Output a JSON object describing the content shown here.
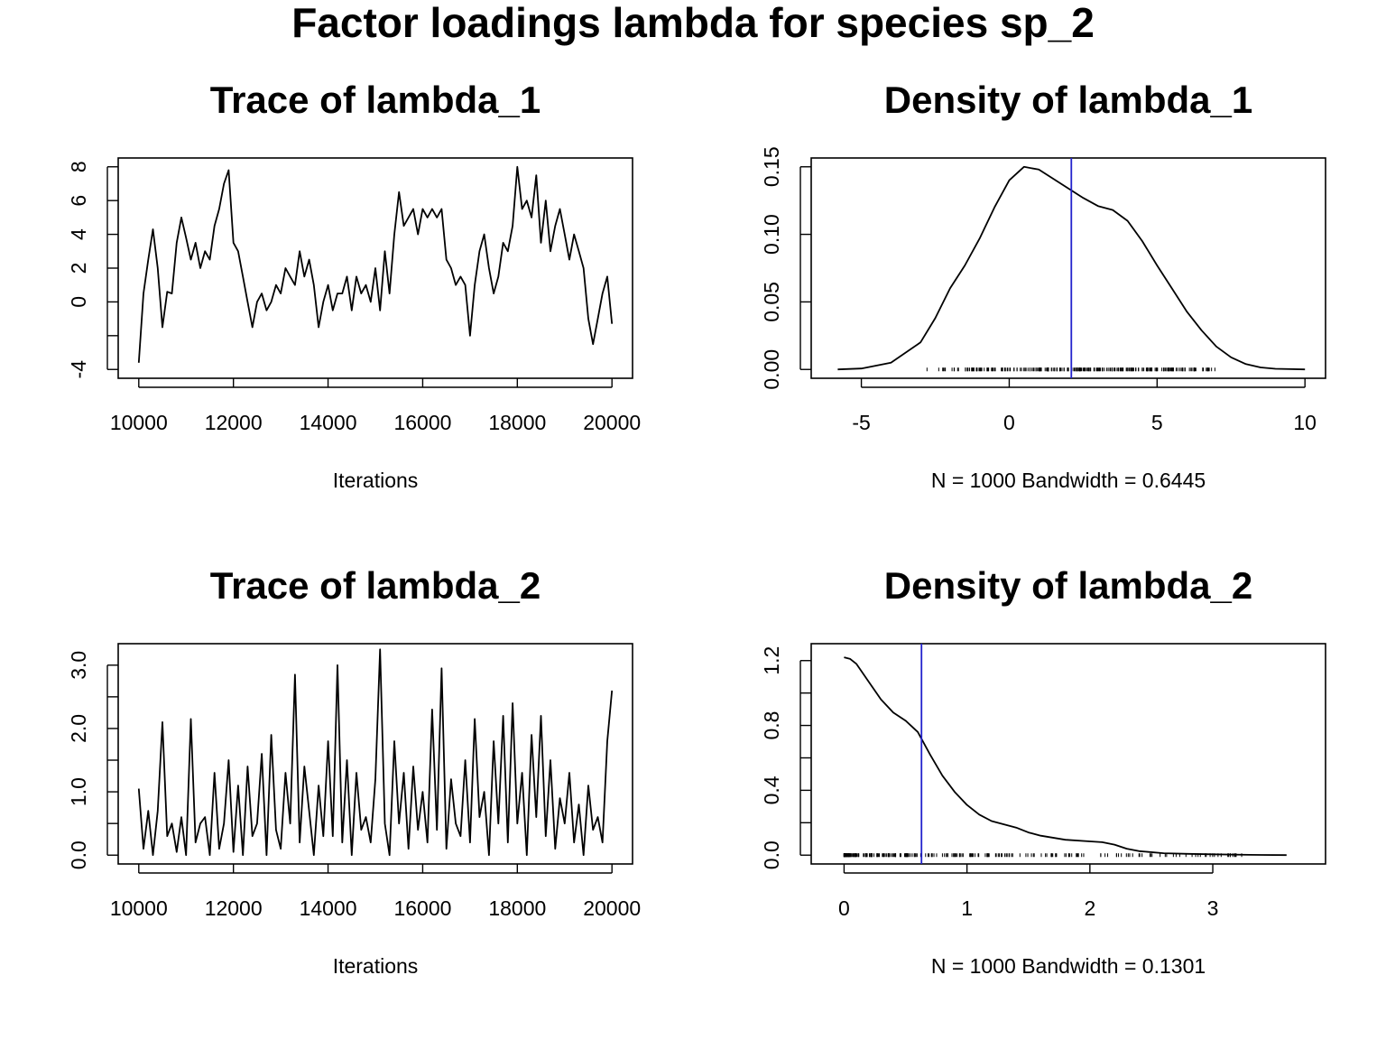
{
  "title": "Factor loadings lambda for species  sp_2",
  "colors": {
    "line": "#000000",
    "mean_line": "#2222cc",
    "background": "#ffffff"
  },
  "chart_data": [
    {
      "type": "line",
      "title": "Trace of lambda_1",
      "xlabel": "Iterations",
      "ylabel": "",
      "xlim": [
        10000,
        20000
      ],
      "ylim": [
        -4,
        8
      ],
      "x_ticks": [
        10000,
        12000,
        14000,
        16000,
        18000,
        20000
      ],
      "y_ticks": [
        -4,
        -2,
        0,
        2,
        4,
        6,
        8
      ],
      "y_tick_labels": [
        "-4",
        "",
        "0",
        "2",
        "4",
        "6",
        "8"
      ],
      "series": [
        {
          "x": [
            10000,
            10100,
            10200,
            10300,
            10400,
            10500,
            10600,
            10700,
            10800,
            10900,
            11000,
            11100,
            11200,
            11300,
            11400,
            11500,
            11600,
            11700,
            11800,
            11900,
            12000,
            12100,
            12200,
            12300,
            12400,
            12500,
            12600,
            12700,
            12800,
            12900,
            13000,
            13100,
            13200,
            13300,
            13400,
            13500,
            13600,
            13700,
            13800,
            13900,
            14000,
            14100,
            14200,
            14300,
            14400,
            14500,
            14600,
            14700,
            14800,
            14900,
            15000,
            15100,
            15200,
            15300,
            15400,
            15500,
            15600,
            15700,
            15800,
            15900,
            16000,
            16100,
            16200,
            16300,
            16400,
            16500,
            16600,
            16700,
            16800,
            16900,
            17000,
            17100,
            17200,
            17300,
            17400,
            17500,
            17600,
            17700,
            17800,
            17900,
            18000,
            18100,
            18200,
            18300,
            18400,
            18500,
            18600,
            18700,
            18800,
            18900,
            19000,
            19100,
            19200,
            19300,
            19400,
            19500,
            19600,
            19700,
            19800,
            19900,
            20000
          ],
          "values": [
            -3.6,
            0.5,
            2.5,
            4.3,
            2.0,
            -1.5,
            0.6,
            0.5,
            3.5,
            5.0,
            3.8,
            2.5,
            3.5,
            2.0,
            3.0,
            2.5,
            4.5,
            5.5,
            7.0,
            7.8,
            3.5,
            3.0,
            1.5,
            0.0,
            -1.5,
            0.0,
            0.5,
            -0.5,
            0.0,
            1.0,
            0.5,
            2.0,
            1.5,
            1.0,
            3.0,
            1.5,
            2.5,
            1.0,
            -1.5,
            0.0,
            1.0,
            -0.5,
            0.5,
            0.5,
            1.5,
            -0.5,
            1.5,
            0.5,
            1.0,
            0.0,
            2.0,
            -0.5,
            3.0,
            0.5,
            4.0,
            6.5,
            4.5,
            5.0,
            5.5,
            4.0,
            5.5,
            5.0,
            5.5,
            5.0,
            5.5,
            2.5,
            2.0,
            1.0,
            1.5,
            1.0,
            -2.0,
            1.0,
            3.0,
            4.0,
            2.0,
            0.5,
            1.5,
            3.5,
            3.0,
            4.5,
            8.0,
            5.5,
            6.0,
            5.0,
            7.5,
            3.5,
            6.0,
            3.0,
            4.5,
            5.5,
            4.0,
            2.5,
            4.0,
            3.0,
            2.0,
            -1.0,
            -2.5,
            -1.0,
            0.5,
            1.5,
            -1.3
          ]
        }
      ]
    },
    {
      "type": "line",
      "title": "Density of lambda_1",
      "xlabel": "N = 1000   Bandwidth = 0.6445",
      "ylabel": "",
      "xlim": [
        -6,
        10
      ],
      "ylim": [
        0,
        0.15
      ],
      "x_ticks": [
        -5,
        0,
        5,
        10
      ],
      "y_ticks": [
        0.0,
        0.05,
        0.1,
        0.15
      ],
      "y_tick_labels": [
        "0.00",
        "0.05",
        "0.10",
        "0.15"
      ],
      "mean_line_x": 2.1,
      "rug_range": [
        -3.8,
        8.1
      ],
      "series": [
        {
          "x": [
            -5.8,
            -5,
            -4,
            -3,
            -2.5,
            -2,
            -1.5,
            -1,
            -0.5,
            0,
            0.5,
            1,
            1.5,
            2,
            2.5,
            3,
            3.5,
            4,
            4.5,
            5,
            5.5,
            6,
            6.5,
            7,
            7.5,
            8,
            8.5,
            9,
            10
          ],
          "values": [
            0.0,
            0.0007,
            0.005,
            0.02,
            0.038,
            0.06,
            0.077,
            0.097,
            0.12,
            0.14,
            0.15,
            0.148,
            0.141,
            0.134,
            0.127,
            0.121,
            0.118,
            0.11,
            0.095,
            0.077,
            0.06,
            0.043,
            0.029,
            0.017,
            0.009,
            0.004,
            0.0015,
            0.0005,
            0.0
          ]
        }
      ]
    },
    {
      "type": "line",
      "title": "Trace of lambda_2",
      "xlabel": "Iterations",
      "ylabel": "",
      "xlim": [
        10000,
        20000
      ],
      "ylim": [
        0,
        3.2
      ],
      "x_ticks": [
        10000,
        12000,
        14000,
        16000,
        18000,
        20000
      ],
      "y_ticks": [
        0.0,
        0.5,
        1.0,
        1.5,
        2.0,
        2.5,
        3.0
      ],
      "y_tick_labels": [
        "0.0",
        "",
        "1.0",
        "",
        "2.0",
        "",
        "3.0"
      ],
      "series": [
        {
          "x": [
            10000,
            10100,
            10200,
            10300,
            10400,
            10500,
            10600,
            10700,
            10800,
            10900,
            11000,
            11100,
            11200,
            11300,
            11400,
            11500,
            11600,
            11700,
            11800,
            11900,
            12000,
            12100,
            12200,
            12300,
            12400,
            12500,
            12600,
            12700,
            12800,
            12900,
            13000,
            13100,
            13200,
            13300,
            13400,
            13500,
            13600,
            13700,
            13800,
            13900,
            14000,
            14100,
            14200,
            14300,
            14400,
            14500,
            14600,
            14700,
            14800,
            14900,
            15000,
            15100,
            15200,
            15300,
            15400,
            15500,
            15600,
            15700,
            15800,
            15900,
            16000,
            16100,
            16200,
            16300,
            16400,
            16500,
            16600,
            16700,
            16800,
            16900,
            17000,
            17100,
            17200,
            17300,
            17400,
            17500,
            17600,
            17700,
            17800,
            17900,
            18000,
            18100,
            18200,
            18300,
            18400,
            18500,
            18600,
            18700,
            18800,
            18900,
            19000,
            19100,
            19200,
            19300,
            19400,
            19500,
            19600,
            19700,
            19800,
            19900,
            20000
          ],
          "values": [
            1.05,
            0.1,
            0.7,
            0.0,
            0.7,
            2.1,
            0.3,
            0.5,
            0.05,
            0.6,
            0.0,
            2.15,
            0.2,
            0.5,
            0.6,
            0.0,
            1.3,
            0.1,
            0.5,
            1.5,
            0.05,
            1.1,
            0.0,
            1.4,
            0.3,
            0.5,
            1.6,
            0.0,
            1.9,
            0.4,
            0.1,
            1.3,
            0.5,
            2.85,
            0.2,
            1.4,
            0.7,
            0.0,
            1.1,
            0.3,
            1.8,
            0.3,
            3.0,
            0.2,
            1.5,
            0.0,
            1.3,
            0.4,
            0.6,
            0.2,
            1.2,
            3.25,
            0.5,
            0.0,
            1.8,
            0.5,
            1.3,
            0.1,
            1.4,
            0.4,
            1.0,
            0.2,
            2.3,
            0.4,
            2.95,
            0.1,
            1.2,
            0.5,
            0.3,
            1.5,
            0.2,
            2.15,
            0.6,
            1.0,
            0.0,
            1.8,
            0.5,
            2.2,
            0.2,
            2.4,
            0.5,
            1.3,
            0.0,
            1.9,
            0.6,
            2.2,
            0.3,
            1.5,
            0.1,
            0.9,
            0.5,
            1.3,
            0.2,
            0.8,
            0.0,
            1.1,
            0.4,
            0.6,
            0.2,
            1.8,
            2.6
          ]
        }
      ]
    },
    {
      "type": "line",
      "title": "Density of lambda_2",
      "xlabel": "N = 1000   Bandwidth = 0.1301",
      "ylabel": "",
      "xlim": [
        -0.1,
        3.75
      ],
      "ylim": [
        0,
        1.25
      ],
      "x_ticks": [
        0,
        1,
        2,
        3
      ],
      "y_ticks": [
        0.0,
        0.2,
        0.4,
        0.6,
        0.8,
        1.0,
        1.2
      ],
      "y_tick_labels": [
        "0.0",
        "",
        "0.4",
        "",
        "0.8",
        "",
        "1.2"
      ],
      "mean_line_x": 0.63,
      "rug_range": [
        0.0,
        3.25
      ],
      "series": [
        {
          "x": [
            0,
            0.05,
            0.1,
            0.2,
            0.3,
            0.4,
            0.5,
            0.6,
            0.7,
            0.8,
            0.9,
            1.0,
            1.1,
            1.2,
            1.3,
            1.4,
            1.5,
            1.6,
            1.8,
            2.0,
            2.1,
            2.2,
            2.3,
            2.4,
            2.6,
            2.8,
            3.0,
            3.3,
            3.6
          ],
          "values": [
            1.22,
            1.21,
            1.18,
            1.07,
            0.96,
            0.88,
            0.83,
            0.76,
            0.62,
            0.49,
            0.39,
            0.31,
            0.25,
            0.21,
            0.19,
            0.17,
            0.14,
            0.12,
            0.095,
            0.085,
            0.08,
            0.065,
            0.04,
            0.025,
            0.012,
            0.008,
            0.005,
            0.002,
            0.0
          ]
        }
      ]
    }
  ]
}
